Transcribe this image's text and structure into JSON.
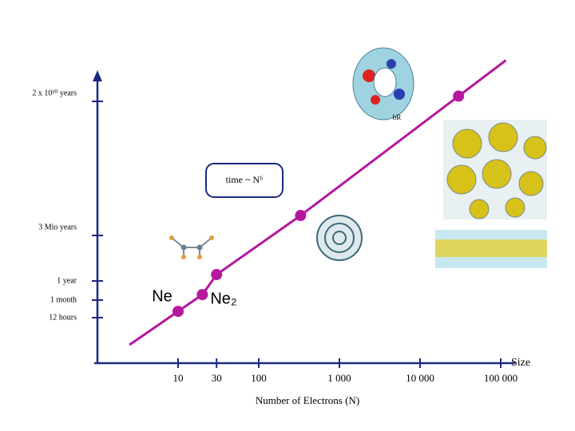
{
  "chart_data": {
    "type": "line",
    "log_x": true,
    "log_y": true,
    "x": [
      10,
      20,
      30,
      330,
      30000
    ],
    "series": [
      {
        "name": "time ~ N⁶",
        "color": "#b5179e",
        "values": [
          0.006,
          0.17,
          8,
          340000000,
          7e+20
        ]
      }
    ],
    "xlim": [
      1,
      150000
    ],
    "xticks": [
      10,
      30,
      {
        "value": 100,
        "label": "100"
      },
      {
        "value": 1000,
        "label": "1 000"
      },
      {
        "value": 10000,
        "label": "10 000"
      },
      {
        "value": 100000,
        "label": "100 000"
      }
    ],
    "yticks": [
      {
        "value": 0.00137,
        "label": "12 hours"
      },
      {
        "value": 0.0833,
        "label": "1 month"
      },
      {
        "value": 1,
        "label": "1 year"
      },
      {
        "value": 3000000,
        "label": "3 Mio years"
      },
      {
        "value": 2e+20,
        "label": "2 x 10²⁰ years"
      }
    ],
    "xlabel": "Number of Electrons (N)",
    "x_end_label": "Size",
    "annotations": [
      "Ne",
      "Ne₂",
      "bR"
    ]
  }
}
